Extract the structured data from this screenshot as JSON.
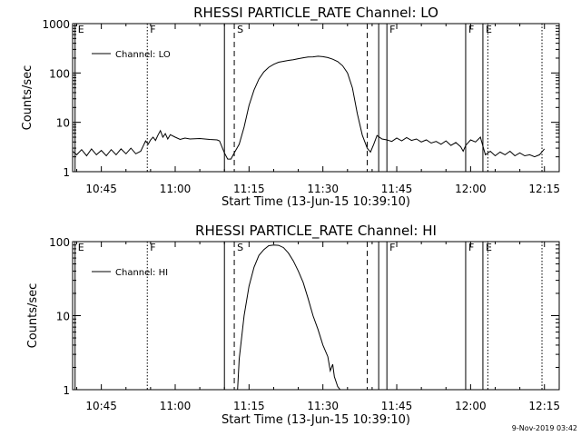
{
  "footer": {
    "date": "9-Nov-2019 03:42"
  },
  "chart_data": [
    {
      "type": "line",
      "title": "RHESSI PARTICLE_RATE Channel: LO",
      "xlabel": "Start Time (13-Jun-15 10:39:10)",
      "ylabel": "Counts/sec",
      "yscale": "log",
      "xlim": [
        "10:39:10",
        "12:18:00"
      ],
      "ylim": [
        1,
        1000
      ],
      "x_ticks": [
        "10:45",
        "11:00",
        "11:15",
        "11:30",
        "11:45",
        "12:00",
        "12:15"
      ],
      "y_ticks": [
        "1",
        "10",
        "100",
        "1000"
      ],
      "legend": {
        "entry": "Channel: LO",
        "placement": "top-left"
      },
      "series": [
        {
          "name": "Channel: LO",
          "points": [
            [
              "10:39:10",
              2.6
            ],
            [
              "10:40:00",
              2.2
            ],
            [
              "10:41:00",
              2.8
            ],
            [
              "10:42:00",
              2.1
            ],
            [
              "10:43:00",
              2.9
            ],
            [
              "10:44:00",
              2.2
            ],
            [
              "10:45:00",
              2.7
            ],
            [
              "10:46:00",
              2.1
            ],
            [
              "10:47:00",
              2.8
            ],
            [
              "10:48:00",
              2.2
            ],
            [
              "10:49:00",
              2.9
            ],
            [
              "10:50:00",
              2.3
            ],
            [
              "10:51:00",
              3.0
            ],
            [
              "10:52:00",
              2.3
            ],
            [
              "10:53:00",
              2.6
            ],
            [
              "10:53:30",
              3.3
            ],
            [
              "10:54:00",
              4.2
            ],
            [
              "10:54:30",
              3.6
            ],
            [
              "10:55:00",
              4.4
            ],
            [
              "10:55:30",
              5.0
            ],
            [
              "10:56:00",
              4.3
            ],
            [
              "10:56:30",
              5.5
            ],
            [
              "10:57:00",
              6.8
            ],
            [
              "10:57:30",
              5.0
            ],
            [
              "10:58:00",
              5.9
            ],
            [
              "10:58:30",
              4.6
            ],
            [
              "10:59:00",
              5.6
            ],
            [
              "11:00:00",
              5.0
            ],
            [
              "11:01:00",
              4.5
            ],
            [
              "11:02:00",
              4.8
            ],
            [
              "11:03:00",
              4.6
            ],
            [
              "11:05:00",
              4.7
            ],
            [
              "11:07:00",
              4.5
            ],
            [
              "11:08:30",
              4.4
            ],
            [
              "11:09:00",
              4.2
            ],
            [
              "11:10:00",
              2.4
            ],
            [
              "11:10:40",
              1.8
            ],
            [
              "11:11:20",
              1.8
            ],
            [
              "11:12:00",
              2.4
            ],
            [
              "11:13:00",
              3.6
            ],
            [
              "11:14:00",
              8
            ],
            [
              "11:15:00",
              22
            ],
            [
              "11:16:00",
              45
            ],
            [
              "11:17:00",
              75
            ],
            [
              "11:18:00",
              105
            ],
            [
              "11:19:00",
              130
            ],
            [
              "11:20:00",
              150
            ],
            [
              "11:21:00",
              165
            ],
            [
              "11:22:00",
              172
            ],
            [
              "11:23:00",
              180
            ],
            [
              "11:24:00",
              185
            ],
            [
              "11:25:00",
              195
            ],
            [
              "11:26:00",
              203
            ],
            [
              "11:27:00",
              210
            ],
            [
              "11:28:00",
              212
            ],
            [
              "11:29:00",
              218
            ],
            [
              "11:30:00",
              214
            ],
            [
              "11:31:00",
              205
            ],
            [
              "11:32:00",
              190
            ],
            [
              "11:33:00",
              170
            ],
            [
              "11:34:00",
              140
            ],
            [
              "11:35:00",
              100
            ],
            [
              "11:36:00",
              50
            ],
            [
              "11:37:00",
              15
            ],
            [
              "11:38:00",
              5.5
            ],
            [
              "11:39:00",
              3.0
            ],
            [
              "11:39:40",
              2.5
            ],
            [
              "11:40:20",
              3.6
            ],
            [
              "11:41:00",
              5.4
            ],
            [
              "11:42:00",
              4.6
            ],
            [
              "11:43:00",
              4.4
            ],
            [
              "11:44:00",
              4.1
            ],
            [
              "11:45:00",
              4.8
            ],
            [
              "11:46:00",
              4.2
            ],
            [
              "11:47:00",
              4.9
            ],
            [
              "11:48:00",
              4.3
            ],
            [
              "11:49:00",
              4.6
            ],
            [
              "11:50:00",
              4.0
            ],
            [
              "11:51:00",
              4.4
            ],
            [
              "11:52:00",
              3.8
            ],
            [
              "11:53:00",
              4.1
            ],
            [
              "11:54:00",
              3.6
            ],
            [
              "11:55:00",
              4.2
            ],
            [
              "11:56:00",
              3.4
            ],
            [
              "11:57:00",
              3.9
            ],
            [
              "11:58:00",
              3.2
            ],
            [
              "11:58:30",
              2.6
            ],
            [
              "11:59:00",
              3.4
            ],
            [
              "12:00:00",
              4.4
            ],
            [
              "12:01:00",
              4.0
            ],
            [
              "12:02:00",
              5.0
            ],
            [
              "12:02:30",
              3.3
            ],
            [
              "12:03:00",
              2.2
            ],
            [
              "12:04:00",
              2.6
            ],
            [
              "12:05:00",
              2.1
            ],
            [
              "12:06:00",
              2.5
            ],
            [
              "12:07:00",
              2.2
            ],
            [
              "12:08:00",
              2.6
            ],
            [
              "12:09:00",
              2.1
            ],
            [
              "12:10:00",
              2.4
            ],
            [
              "12:11:00",
              2.1
            ],
            [
              "12:12:00",
              2.2
            ],
            [
              "12:13:00",
              2.0
            ],
            [
              "12:14:00",
              2.2
            ],
            [
              "12:15:00",
              2.9
            ]
          ]
        }
      ],
      "markers": [
        {
          "time": "10:39:40",
          "style": "solid",
          "label": "E"
        },
        {
          "time": "10:54:20",
          "style": "dotted",
          "label": "F"
        },
        {
          "time": "11:10:00",
          "style": "solid",
          "label": ""
        },
        {
          "time": "11:12:00",
          "style": "dashed",
          "label": "S"
        },
        {
          "time": "11:39:00",
          "style": "dashed",
          "label": ""
        },
        {
          "time": "11:41:20",
          "style": "solid",
          "label": ""
        },
        {
          "time": "11:43:00",
          "style": "solid",
          "label": "F"
        },
        {
          "time": "11:59:00",
          "style": "solid",
          "label": "F"
        },
        {
          "time": "12:02:30",
          "style": "solid",
          "label": "E"
        },
        {
          "time": "12:03:30",
          "style": "dotted",
          "label": ""
        },
        {
          "time": "12:14:30",
          "style": "dotted",
          "label": ""
        }
      ]
    },
    {
      "type": "line",
      "title": "RHESSI PARTICLE_RATE Channel: HI",
      "xlabel": "Start Time (13-Jun-15 10:39:10)",
      "ylabel": "Counts/sec",
      "yscale": "log",
      "xlim": [
        "10:39:10",
        "12:18:00"
      ],
      "ylim": [
        1,
        100
      ],
      "x_ticks": [
        "10:45",
        "11:00",
        "11:15",
        "11:30",
        "11:45",
        "12:00",
        "12:15"
      ],
      "y_ticks": [
        "1",
        "10",
        "100"
      ],
      "legend": {
        "entry": "Channel: HI",
        "placement": "top-left"
      },
      "series": [
        {
          "name": "Channel: HI",
          "points": [
            [
              "11:12:40",
              1.0
            ],
            [
              "11:13:00",
              2.6
            ],
            [
              "11:14:00",
              10
            ],
            [
              "11:15:00",
              25
            ],
            [
              "11:16:00",
              45
            ],
            [
              "11:17:00",
              65
            ],
            [
              "11:18:00",
              78
            ],
            [
              "11:19:00",
              88
            ],
            [
              "11:20:00",
              90
            ],
            [
              "11:21:00",
              89
            ],
            [
              "11:22:00",
              83
            ],
            [
              "11:23:00",
              70
            ],
            [
              "11:24:00",
              55
            ],
            [
              "11:25:00",
              40
            ],
            [
              "11:26:00",
              28
            ],
            [
              "11:27:00",
              17
            ],
            [
              "11:28:00",
              10
            ],
            [
              "11:29:00",
              6.5
            ],
            [
              "11:30:00",
              4.0
            ],
            [
              "11:31:00",
              2.8
            ],
            [
              "11:31:30",
              1.8
            ],
            [
              "11:32:00",
              2.2
            ],
            [
              "11:32:20",
              1.5
            ],
            [
              "11:33:00",
              1.1
            ],
            [
              "11:33:30",
              1.0
            ]
          ]
        }
      ],
      "markers": [
        {
          "time": "10:39:40",
          "style": "solid",
          "label": "E"
        },
        {
          "time": "10:54:20",
          "style": "dotted",
          "label": "F"
        },
        {
          "time": "11:10:00",
          "style": "solid",
          "label": ""
        },
        {
          "time": "11:12:00",
          "style": "dashed",
          "label": "S"
        },
        {
          "time": "11:39:00",
          "style": "dashed",
          "label": ""
        },
        {
          "time": "11:41:20",
          "style": "solid",
          "label": ""
        },
        {
          "time": "11:43:00",
          "style": "solid",
          "label": "F"
        },
        {
          "time": "11:59:00",
          "style": "solid",
          "label": "F"
        },
        {
          "time": "12:02:30",
          "style": "solid",
          "label": "E"
        },
        {
          "time": "12:03:30",
          "style": "dotted",
          "label": ""
        },
        {
          "time": "12:14:30",
          "style": "dotted",
          "label": ""
        }
      ]
    }
  ]
}
